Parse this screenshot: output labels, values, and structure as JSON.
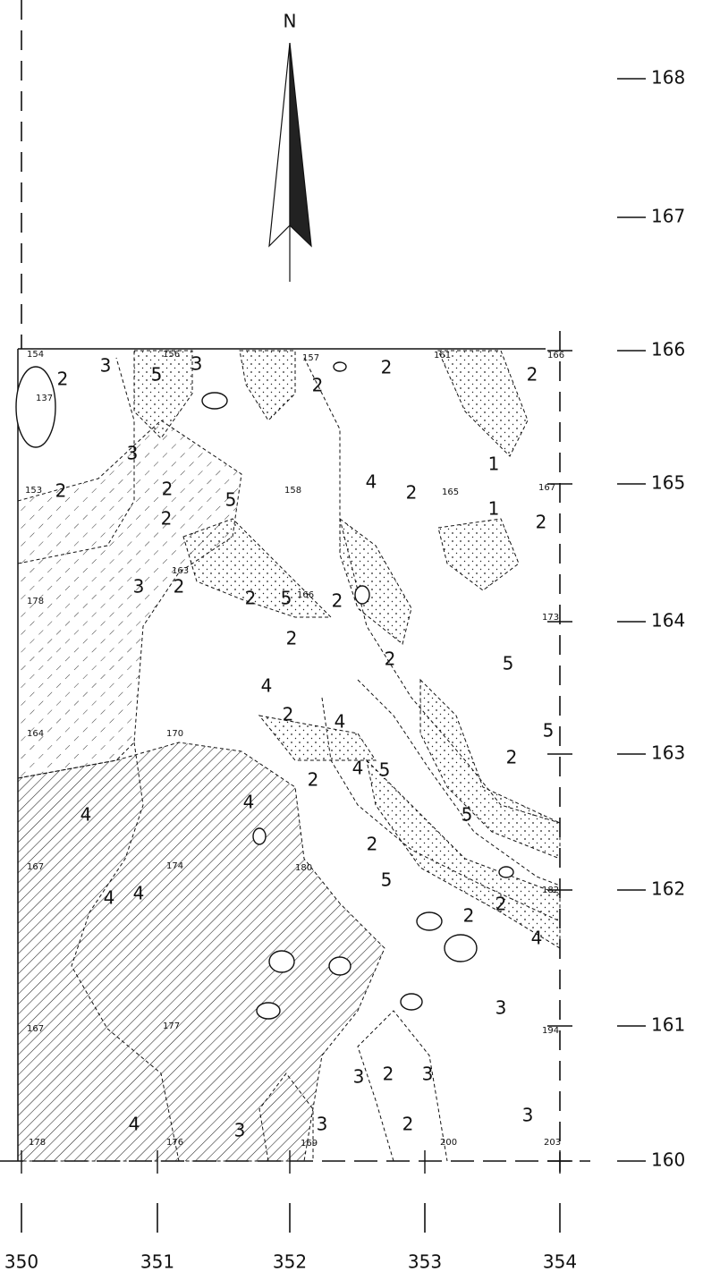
{
  "north": "N",
  "northings": [
    168,
    167,
    166,
    165,
    164,
    163,
    162,
    161,
    160
  ],
  "eastings": [
    350,
    351,
    352,
    353,
    354
  ],
  "zones": [
    "2",
    "3",
    "5",
    "3",
    "2",
    "2",
    "2",
    "3",
    "2",
    "2",
    "4",
    "2",
    "1",
    "1",
    "2",
    "5",
    "2",
    "5",
    "2",
    "2",
    "2",
    "3",
    "2",
    "2",
    "5",
    "4",
    "2",
    "4",
    "5",
    "2",
    "4",
    "2",
    "5",
    "2",
    "5",
    "5",
    "2",
    "4",
    "4",
    "4",
    "4",
    "2",
    "4",
    "3",
    "2",
    "3",
    "3",
    "4",
    "3",
    "2",
    "3",
    "3"
  ],
  "elevations": [
    "154",
    "156",
    "157",
    "161",
    "166",
    "137",
    "153",
    "167",
    "163",
    "158",
    "165",
    "166",
    "173",
    "178",
    "164",
    "170",
    "180",
    "182",
    "174",
    "167",
    "167",
    "194",
    "177",
    "178",
    "176",
    "200",
    "203",
    "169"
  ]
}
